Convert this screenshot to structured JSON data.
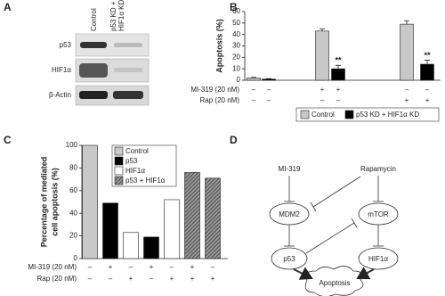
{
  "panel_labels": [
    "A",
    "B",
    "C",
    "D"
  ],
  "blot": {
    "column_labels": [
      "Control",
      [
        "p53 KD +",
        "HIF1α KD"
      ]
    ],
    "row_labels": [
      "p53",
      "HIF1α",
      "β-Actin"
    ]
  },
  "chart_data": [
    {
      "type": "bar",
      "ylabel": "Apoptosis (%)",
      "ylim": [
        0,
        60
      ],
      "yticks": [
        0,
        10,
        20,
        30,
        40,
        50,
        60
      ],
      "series": [
        {
          "name": "Control",
          "color": "#c8c8c8",
          "values": [
            2,
            43,
            49
          ],
          "errors": [
            0.5,
            2,
            3
          ]
        },
        {
          "name": "p53 KD + HIF1α KD",
          "color": "#000000",
          "values": [
            1,
            10,
            14
          ],
          "errors": [
            0.3,
            3,
            3.5
          ]
        }
      ],
      "annotations": [
        "**",
        "**"
      ],
      "treatments": [
        {
          "label": "MI-319 (20 nM)",
          "signs": [
            "–",
            "–",
            "+",
            "+",
            "–",
            "–"
          ]
        },
        {
          "label": "Rap (20 nM)",
          "signs": [
            "–",
            "–",
            "–",
            "–",
            "+",
            "+"
          ]
        }
      ]
    },
    {
      "type": "bar",
      "ylabel": [
        "Percentage of mediated",
        "cell apoptosis (%)"
      ],
      "ylim": [
        0,
        100
      ],
      "yticks": [
        0,
        20,
        40,
        60,
        80,
        100
      ],
      "series": [
        {
          "name": "Control",
          "color": "#c8c8c8",
          "values": [
            100,
            null,
            null,
            null,
            null,
            null,
            null
          ]
        },
        {
          "name": "p53",
          "color": "#000000",
          "values": [
            null,
            49,
            null,
            19,
            null,
            null,
            null
          ]
        },
        {
          "name": "HIF1α",
          "color": "#ffffff",
          "values": [
            null,
            null,
            23,
            null,
            52,
            null,
            null
          ]
        },
        {
          "name": "p53 + HIF1α",
          "color": "#555555",
          "hatch": true,
          "values": [
            null,
            null,
            null,
            null,
            null,
            76,
            71
          ]
        }
      ],
      "treatments": [
        {
          "label": "MI-319 (20 nM)",
          "signs": [
            "–",
            "+",
            "–",
            "+",
            "–",
            "+",
            "–"
          ]
        },
        {
          "label": "Rap (20 nM)",
          "signs": [
            "–",
            "–",
            "+",
            "–",
            "+",
            "+",
            "+"
          ]
        }
      ]
    }
  ],
  "diagram": {
    "nodes": [
      "MI-319",
      "Rapamycin",
      "MDM2",
      "mTOR",
      "p53",
      "HIF1α",
      "Apoptosis"
    ]
  }
}
